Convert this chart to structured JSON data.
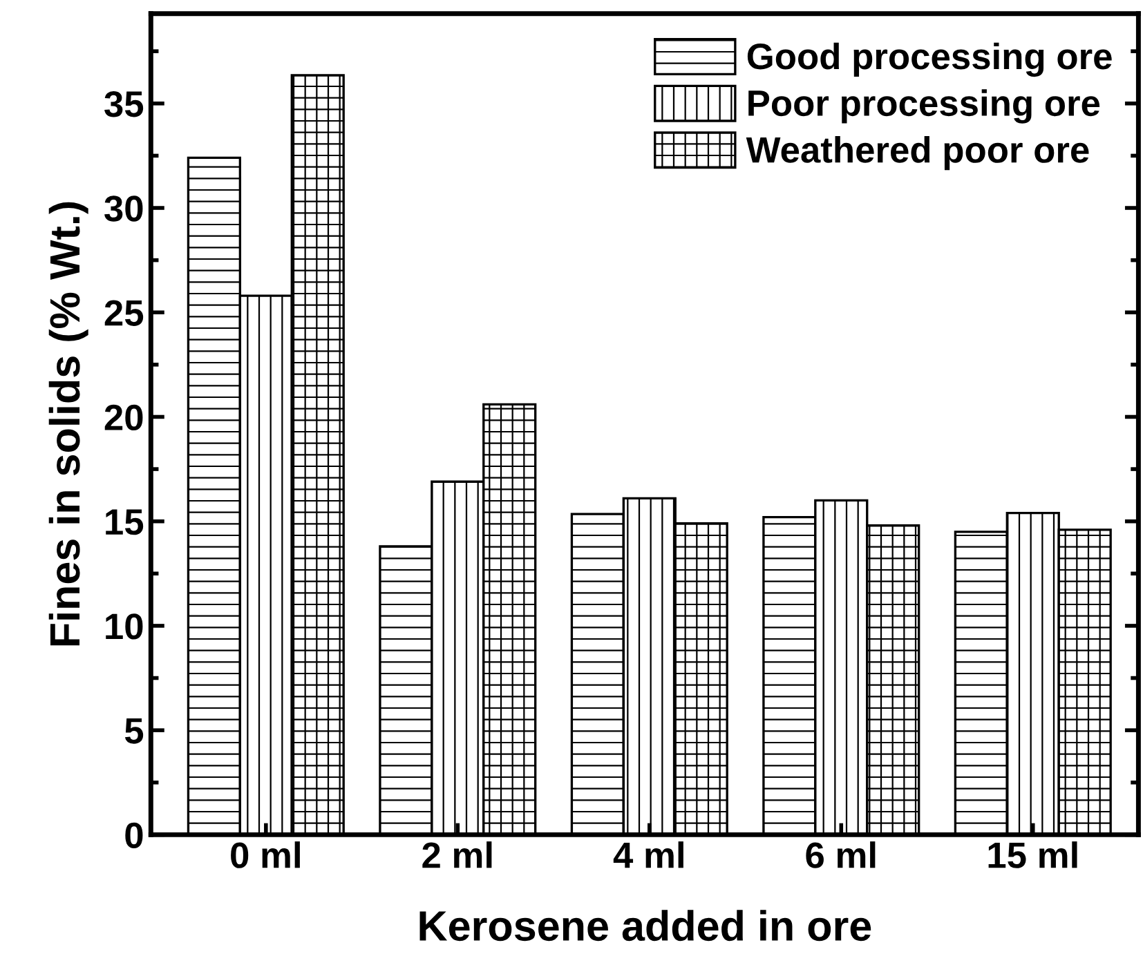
{
  "chart_data": {
    "type": "bar",
    "xlabel": "Kerosene added in ore",
    "ylabel": "Fines in solids (% Wt.)",
    "categories": [
      "0 ml",
      "2 ml",
      "4 ml",
      "6 ml",
      "15 ml"
    ],
    "series": [
      {
        "name": "Good processing ore",
        "color": "#000000",
        "values": [
          32.4,
          13.8,
          15.35,
          15.2,
          14.5
        ]
      },
      {
        "name": "Poor processing ore",
        "color": "#000000",
        "values": [
          25.8,
          16.9,
          16.1,
          16.0,
          15.4
        ]
      },
      {
        "name": "Weathered poor ore",
        "color": "#000000",
        "values": [
          36.35,
          20.6,
          14.9,
          14.8,
          14.6
        ]
      }
    ],
    "ylim": [
      0,
      39.3
    ],
    "yticks": [
      0,
      {
        "value": 2.5,
        "label": null
      },
      5,
      {
        "value": 7.5,
        "label": null
      },
      10,
      {
        "value": 12.5,
        "label": null
      },
      15,
      {
        "value": 17.5,
        "label": null
      },
      20,
      {
        "value": 22.5,
        "label": null
      },
      25,
      {
        "value": 27.5,
        "label": null
      },
      30,
      {
        "value": 32.5,
        "label": null
      },
      35,
      {
        "value": 37.5,
        "label": null
      }
    ],
    "grid": false,
    "legend": "top right"
  }
}
